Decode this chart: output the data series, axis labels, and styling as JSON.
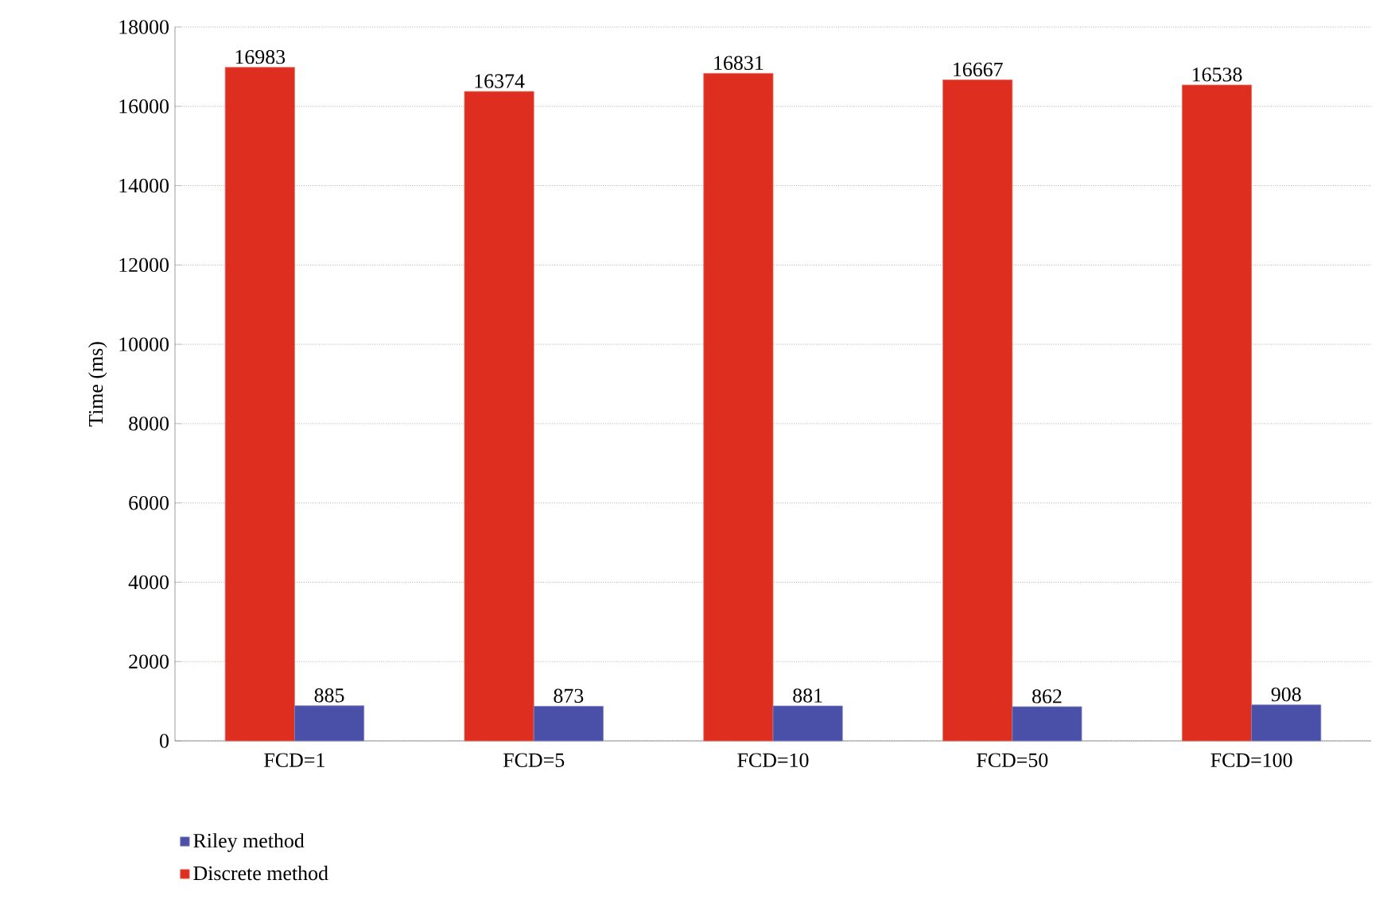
{
  "chart_data": {
    "type": "bar",
    "ylabel": "Time (ms)",
    "categories": [
      "FCD=1",
      "FCD=5",
      "FCD=10",
      "FCD=50",
      "FCD=100"
    ],
    "series": [
      {
        "name": "Riley method",
        "color": "#4a4fa8",
        "values": [
          885,
          873,
          881,
          862,
          908
        ]
      },
      {
        "name": "Discrete method",
        "color": "#dd2e1f",
        "values": [
          16983,
          16374,
          16831,
          16667,
          16538
        ]
      }
    ],
    "ylim": [
      0,
      18000
    ],
    "yticks": [
      0,
      2000,
      4000,
      6000,
      8000,
      10000,
      12000,
      14000,
      16000,
      18000
    ],
    "grid": "y",
    "legend": "bottom",
    "data_labels": true
  }
}
